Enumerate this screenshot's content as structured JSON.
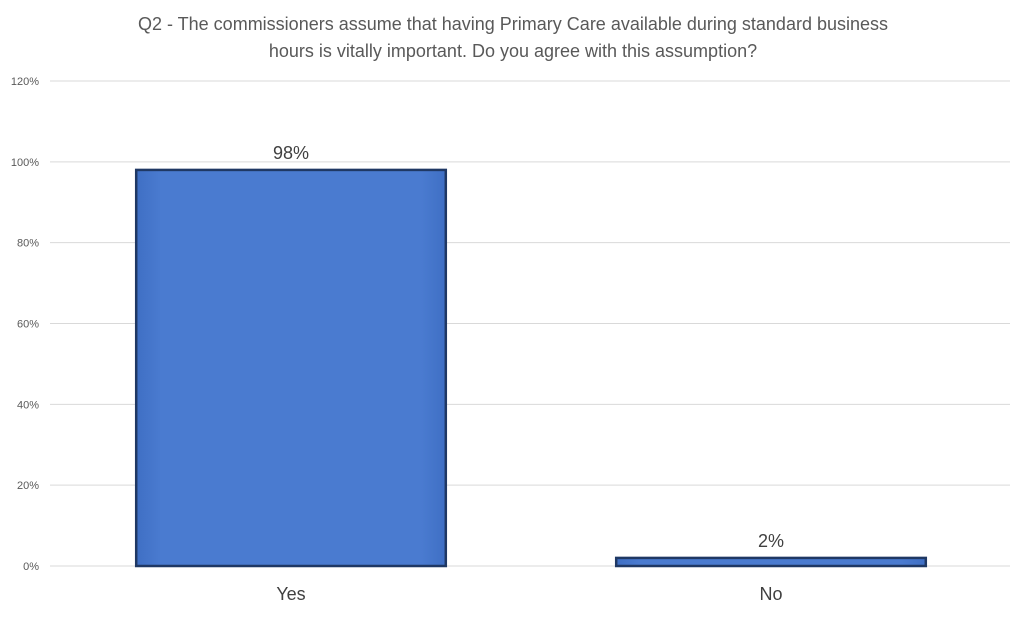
{
  "chart_data": {
    "type": "bar",
    "title_lines": [
      "Q2 - The commissioners assume that having Primary Care available during standard business",
      "hours is vitally important.  Do you agree with this assumption?"
    ],
    "categories": [
      "Yes",
      "No"
    ],
    "values": [
      98,
      2
    ],
    "data_labels": [
      "98%",
      "2%"
    ],
    "ylim": [
      0,
      120
    ],
    "yticks": [
      0,
      20,
      40,
      60,
      80,
      100,
      120
    ],
    "ytick_labels": [
      "0%",
      "20%",
      "40%",
      "60%",
      "80%",
      "100%",
      "120%"
    ],
    "grid": true,
    "legend": "none",
    "bar_color": "#4a7bd0",
    "bar_edge_color": "#1f3864"
  }
}
